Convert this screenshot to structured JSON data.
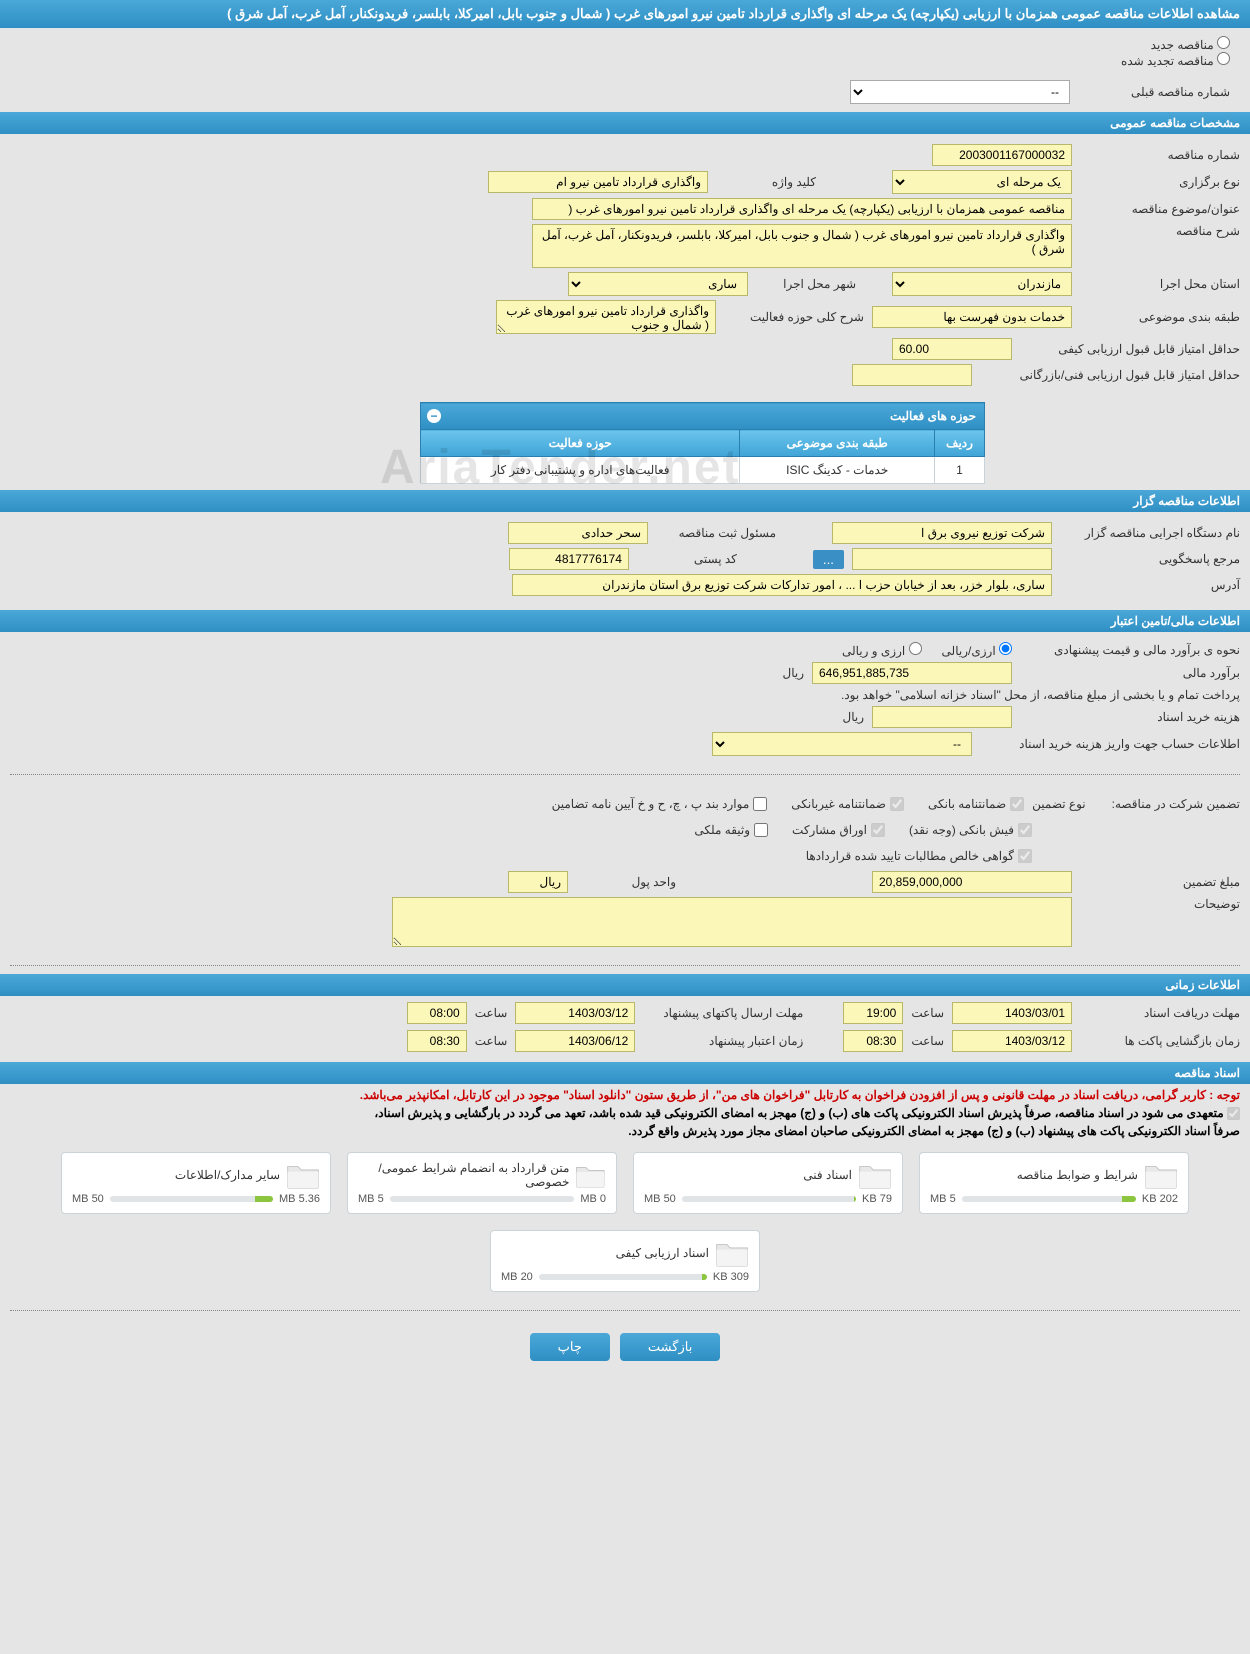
{
  "page_title": "مشاهده اطلاعات مناقصه عمومی همزمان با ارزیابی (یکپارچه) یک مرحله ای واگذاری قرارداد تامین نیرو امورهای غرب ( شمال و جنوب بابل، امیرکلا، بابلسر، فریدونکنار، آمل غرب، آمل شرق )",
  "tender_status": {
    "new_label": "مناقصه جدید",
    "renewed_label": "مناقصه تجدید شده",
    "prev_number_label": "شماره مناقصه قبلی",
    "prev_number_placeholder": "--"
  },
  "section_general": "مشخصات مناقصه عمومی",
  "general": {
    "number_label": "شماره مناقصه",
    "number": "2003001167000032",
    "type_label": "نوع برگزاری",
    "type_options": [
      "یک مرحله ای"
    ],
    "keyword_label": "کلید واژه",
    "keyword": "واگذاری قرارداد تامین نیرو ام",
    "title_label": "عنوان/موضوع مناقصه",
    "title_value": "مناقصه عمومی همزمان با ارزیابی (یکپارچه) یک مرحله ای واگذاری قرارداد تامین نیرو امورهای غرب (",
    "desc_label": "شرح مناقصه",
    "desc_value": "واگذاری قرارداد تامین نیرو امورهای غرب ( شمال و جنوب بابل، امیرکلا، بابلسر، فریدونکنار، آمل غرب، آمل شرق )",
    "province_label": "استان محل اجرا",
    "province_options": [
      "مازندران"
    ],
    "city_label": "شهر محل اجرا",
    "city_options": [
      "ساری"
    ],
    "subject_class_label": "طبقه بندی موضوعی",
    "subject_class": "خدمات بدون فهرست بها",
    "activity_desc_label": "شرح کلی حوزه فعالیت",
    "activity_desc_value": "واگذاری قرارداد تامین نیرو امورهای غرب ( شمال و جنوب",
    "min_qual_label": "حداقل امتیاز قابل قبول ارزیابی کیفی",
    "min_qual_value": "60.00",
    "min_tech_label": "حداقل امتیاز قابل قبول ارزیابی فنی/بازرگانی",
    "min_tech_value": ""
  },
  "activity_table": {
    "title": "حوزه های فعالیت",
    "col_row": "ردیف",
    "col_class": "طبقه بندی موضوعی",
    "col_area": "حوزه فعالیت",
    "row_num": "1",
    "row_class": "خدمات - کدینگ ISIC",
    "row_area": "فعالیت‌های  اداره و پشتیبانی دفتر کار"
  },
  "section_grantor": "اطلاعات مناقصه گزار",
  "grantor": {
    "org_label": "نام دستگاه اجرایی مناقصه گزار",
    "org_value": "شرکت توزیع نیروی برق ا",
    "contact_name_label": "مسئول ثبت مناقصه",
    "contact_name_value": "سحر حدادی",
    "responder_label": "مرجع پاسخگویی",
    "ellipsis": "...",
    "postal_label": "کد پستی",
    "postal_value": "4817776174",
    "address_label": "آدرس",
    "address_value": "ساری، بلوار خزر، بعد از خیابان حزب ا ... ، امور تدارکات شرکت توزیع برق استان مازندران"
  },
  "section_finance": "اطلاعات مالی/تامین اعتبار",
  "finance": {
    "mode_label": "نحوه ی برآورد مالی و قیمت پیشنهادی",
    "mode_r1": "ارزی/ریالی",
    "mode_r2": "ارزی و ریالی",
    "amount_label": "برآورد مالی",
    "amount_value": "646,951,885,735",
    "amount_unit": "ریال",
    "treasury_note": "پرداخت تمام و یا بخشی از مبلغ مناقصه، از محل \"اسناد خزانه اسلامی\" خواهد بود.",
    "buy_cost_label": "هزینه خرید اسناد",
    "buy_cost_unit": "ریال",
    "account_info_label": "اطلاعات حساب جهت واریز هزینه خرید اسناد",
    "account_select": "--"
  },
  "guarantee": {
    "title": "تضمین شرکت در مناقصه:",
    "type_label": "نوع تضمین",
    "c1": "ضمانتنامه بانکی",
    "c2": "ضمانتنامه غیربانکی",
    "c3": "موارد بند پ ، چ، ح و خ آیین نامه تضامین",
    "c4": "فیش بانکی (وجه نقد)",
    "c5": "اوراق مشارکت",
    "c6": "وثیقه ملکی",
    "c7": "گواهی خالص مطالبات تایید شده قراردادها",
    "amount_label": "مبلغ تضمین",
    "amount_value": "20,859,000,000",
    "currency_label": "واحد پول",
    "currency_value": "ریال",
    "notes_label": "توضیحات",
    "notes_value": ""
  },
  "section_time": "اطلاعات زمانی",
  "time": {
    "receive_label": "مهلت دریافت اسناد",
    "receive_date": "1403/03/01",
    "receive_time_label": "ساعت",
    "receive_time": "19:00",
    "send_label": "مهلت ارسال پاکتهای پیشنهاد",
    "send_date": "1403/03/12",
    "send_time_label": "ساعت",
    "send_time": "08:00",
    "open_label": "زمان بازگشایی پاکت ها",
    "open_date": "1403/03/12",
    "open_time_label": "ساعت",
    "open_time": "08:30",
    "credit_label": "زمان اعتبار پیشنهاد",
    "credit_date": "1403/06/12",
    "credit_time_label": "ساعت",
    "credit_time": "08:30"
  },
  "section_docs": "اسناد مناقصه",
  "notices": {
    "red": "توجه : کاربر گرامی، دریافت اسناد در مهلت قانونی و پس از افزودن فراخوان به کارتابل \"فراخوان های من\"، از طریق ستون \"دانلود اسناد\" موجود در این کارتابل، امکانپذیر می‌باشد.",
    "line1": "متعهدی می شود در اسناد مناقصه، صرفاً پذیرش اسناد الکترونیکی پاکت های (ب) و (ج) مهجز به امضای الکترونیکی قید شده باشد، تعهد می گردد در بارگشایی و پذیرش اسناد،",
    "line2": "صرفاً اسناد الکترونیکی پاکت های پیشنهاد (ب) و (ج) مهجز به امضای الکترونیکی صاحبان امضای مجاز مورد پذیرش واقع گردد."
  },
  "docs": [
    {
      "name": "شرایط و ضوابط مناقصه",
      "size": "202 KB",
      "max": "5 MB",
      "pct": 8
    },
    {
      "name": "اسناد فنی",
      "size": "79 KB",
      "max": "50 MB",
      "pct": 1
    },
    {
      "name": "متن قرارداد به انضمام شرایط عمومی/خصوصی",
      "size": "0 MB",
      "max": "5 MB",
      "pct": 0
    },
    {
      "name": "سایر مدارک/اطلاعات",
      "size": "5.36 MB",
      "max": "50 MB",
      "pct": 11
    },
    {
      "name": "اسناد ارزیابی کیفی",
      "size": "309 KB",
      "max": "20 MB",
      "pct": 3
    }
  ],
  "buttons": {
    "print": "چاپ",
    "back": "بازگشت"
  },
  "watermark": "AriaTender.net",
  "colors": {
    "header_top": "#4ba8d8",
    "header_bottom": "#2f8fc4",
    "yellow_bg": "#fbf7b8",
    "page_bg": "#e5e5e5",
    "progress_fill": "#8cc63f"
  }
}
